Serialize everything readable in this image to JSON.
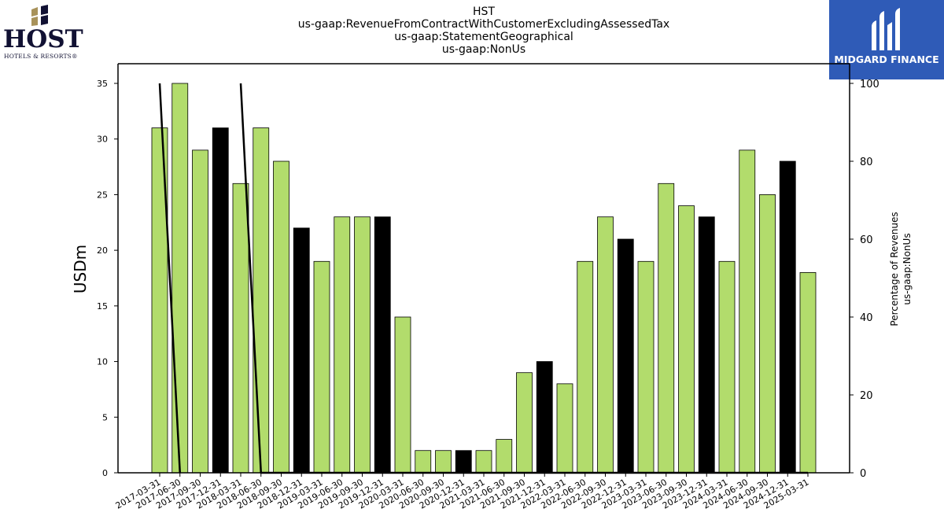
{
  "header": {
    "title_lines": [
      "HST",
      "us-gaap:RevenueFromContractWithCustomerExcludingAssessedTax",
      "us-gaap:StatementGeographical",
      "us-gaap:NonUs"
    ]
  },
  "logos": {
    "left": {
      "name": "HOST",
      "tagline": "HOTELS & RESORTS®"
    },
    "right": {
      "name": "MIDGARD FINANCE"
    }
  },
  "colors": {
    "bar_default": "#b2dc6c",
    "bar_highlight": "#000000",
    "line": "#000000",
    "right_logo_bg": "#2f5bb7"
  },
  "chart_data": {
    "type": "bar",
    "ylabel": "USDm",
    "y2label_lines": [
      "Percentage of Revenues",
      "us-gaap:NonUs"
    ],
    "ylim": [
      0,
      37
    ],
    "yticks": [
      0,
      5,
      10,
      15,
      20,
      25,
      30,
      35
    ],
    "y2lim": [
      0,
      100
    ],
    "y2ticks": [
      0,
      20,
      40,
      60,
      80,
      100
    ],
    "categories": [
      "2017-03-31",
      "2017-06-30",
      "2017-09-30",
      "2017-12-31",
      "2018-03-31",
      "2018-06-30",
      "2018-09-30",
      "2018-12-31",
      "2019-03-31",
      "2019-06-30",
      "2019-09-30",
      "2019-12-31",
      "2020-03-31",
      "2020-06-30",
      "2020-09-30",
      "2020-12-31",
      "2021-03-31",
      "2021-06-30",
      "2021-09-30",
      "2021-12-31",
      "2022-03-31",
      "2022-06-30",
      "2022-09-30",
      "2022-12-31",
      "2023-03-31",
      "2023-06-30",
      "2023-09-30",
      "2023-12-31",
      "2024-03-31",
      "2024-06-30",
      "2024-09-30",
      "2024-12-31",
      "2025-03-31"
    ],
    "values": [
      31,
      35,
      29,
      31,
      26,
      31,
      28,
      22,
      19,
      23,
      23,
      23,
      14,
      2,
      2,
      2,
      2,
      3,
      9,
      10,
      8,
      19,
      23,
      21,
      19,
      26,
      24,
      23,
      19,
      29,
      25,
      28,
      18
    ],
    "highlight": [
      false,
      false,
      false,
      true,
      false,
      false,
      false,
      true,
      false,
      false,
      false,
      true,
      false,
      false,
      false,
      true,
      false,
      false,
      false,
      true,
      false,
      false,
      false,
      true,
      false,
      false,
      false,
      true,
      false,
      false,
      false,
      true,
      false
    ],
    "percentage_series": {
      "axis": "right",
      "values": [
        100,
        0,
        null,
        null,
        100,
        0,
        0,
        0,
        0,
        0,
        0,
        0,
        0,
        0,
        0,
        0,
        0,
        0,
        0,
        0,
        0,
        0,
        0,
        0,
        0,
        0,
        0,
        0,
        0,
        0,
        0,
        0,
        0
      ]
    }
  }
}
